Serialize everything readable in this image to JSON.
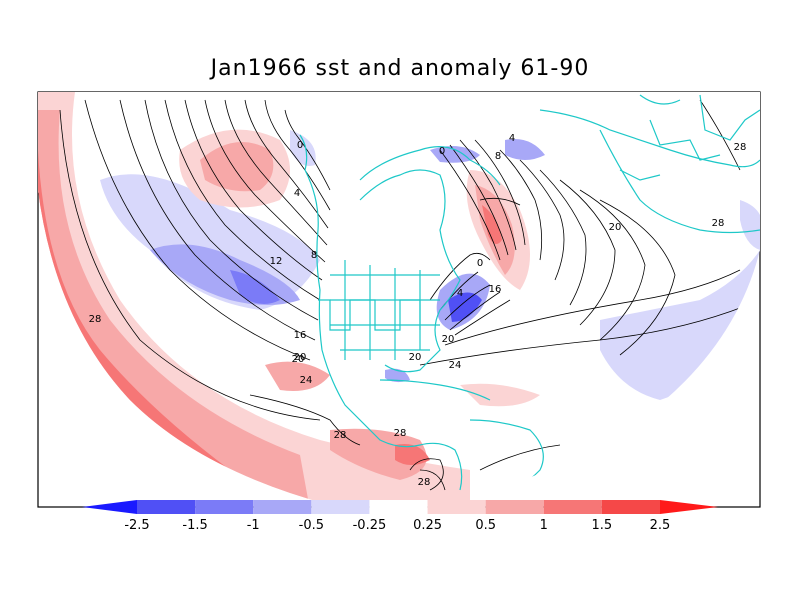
{
  "title": "Jan1966 sst and anomaly 61-90",
  "colorbar": {
    "labels": [
      "-2.5",
      "-1.5",
      "-1",
      "-0.5",
      "-0.25",
      "0.25",
      "0.5",
      "1",
      "1.5",
      "2.5"
    ],
    "colors": [
      "#1a1aff",
      "#5050f5",
      "#7b7bf7",
      "#a8a8f7",
      "#d8d8fb",
      "#ffffff",
      "#fbd4d4",
      "#f7a8a8",
      "#f67676",
      "#f54848",
      "#ff1a1a"
    ]
  },
  "contour_labels": [
    {
      "text": "0"
    },
    {
      "text": "4"
    },
    {
      "text": "8"
    },
    {
      "text": "12"
    },
    {
      "text": "16"
    },
    {
      "text": "20"
    },
    {
      "text": "24"
    },
    {
      "text": "28"
    },
    {
      "text": "28"
    },
    {
      "text": "28"
    },
    {
      "text": "28"
    },
    {
      "text": "0"
    },
    {
      "text": "4"
    },
    {
      "text": "8"
    },
    {
      "text": "0"
    },
    {
      "text": "4"
    },
    {
      "text": "16"
    },
    {
      "text": "20"
    },
    {
      "text": "20"
    },
    {
      "text": "24"
    },
    {
      "text": "20"
    },
    {
      "text": "28"
    },
    {
      "text": "28"
    },
    {
      "text": "20"
    }
  ],
  "colors": {
    "coast": "#1ec8c8",
    "frame": "#000000"
  }
}
